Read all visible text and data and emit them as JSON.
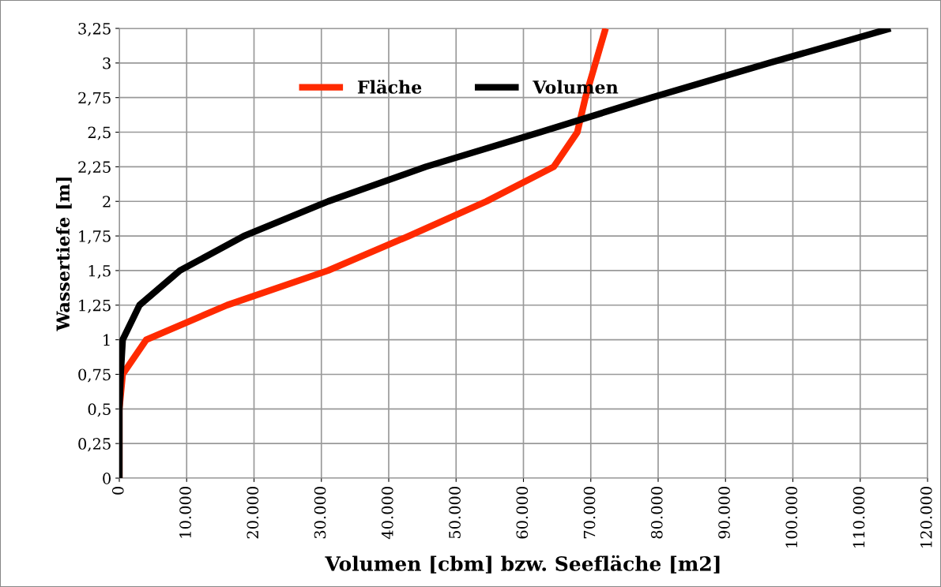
{
  "chart_data": {
    "type": "line",
    "xlabel": "Volumen [cbm] bzw. Seefläche [m2]",
    "ylabel": "Wassertiefe [m]",
    "series": [
      {
        "name": "Fläche",
        "color": "#ff2a00",
        "x": [
          0,
          0,
          500,
          4000,
          16000,
          31000,
          43000,
          54500,
          64500,
          68000,
          69200,
          70700,
          72200
        ],
        "values": [
          0,
          0.5,
          0.75,
          1,
          1.25,
          1.5,
          1.75,
          2,
          2.25,
          2.5,
          2.75,
          3,
          3.25
        ]
      },
      {
        "name": "Volumen",
        "color": "#000000",
        "x": [
          0,
          0,
          200,
          500,
          3000,
          9000,
          18500,
          31000,
          45500,
          62500,
          79000,
          96500,
          114500
        ],
        "values": [
          0,
          0.5,
          0.75,
          1,
          1.25,
          1.5,
          1.75,
          2,
          2.25,
          2.5,
          2.75,
          3,
          3.25
        ]
      }
    ],
    "xlim": [
      0,
      120000
    ],
    "ylim": [
      0,
      3.25
    ],
    "xticks": [
      0,
      {
        "value": 10000,
        "label": "10.000"
      },
      {
        "value": 20000,
        "label": "20.000"
      },
      {
        "value": 30000,
        "label": "30.000"
      },
      {
        "value": 40000,
        "label": "40.000"
      },
      {
        "value": 50000,
        "label": "50.000"
      },
      {
        "value": 60000,
        "label": "60.000"
      },
      {
        "value": 70000,
        "label": "70.000"
      },
      {
        "value": 80000,
        "label": "80.000"
      },
      {
        "value": 90000,
        "label": "90.000"
      },
      {
        "value": 100000,
        "label": "100.000"
      },
      {
        "value": 110000,
        "label": "110.000"
      },
      {
        "value": 120000,
        "label": "120.000"
      }
    ],
    "yticks": [
      0,
      {
        "value": 0.25,
        "label": "0,25"
      },
      {
        "value": 0.5,
        "label": "0,5"
      },
      {
        "value": 0.75,
        "label": "0,75"
      },
      1,
      {
        "value": 1.25,
        "label": "1,25"
      },
      {
        "value": 1.5,
        "label": "1,5"
      },
      {
        "value": 1.75,
        "label": "1,75"
      },
      2,
      {
        "value": 2.25,
        "label": "2,25"
      },
      {
        "value": 2.5,
        "label": "2,5"
      },
      {
        "value": 2.75,
        "label": "2,75"
      },
      3,
      {
        "value": 3.25,
        "label": "3,25"
      }
    ],
    "grid": true,
    "legend": "top",
    "line_style": "solid",
    "marker": "none"
  }
}
